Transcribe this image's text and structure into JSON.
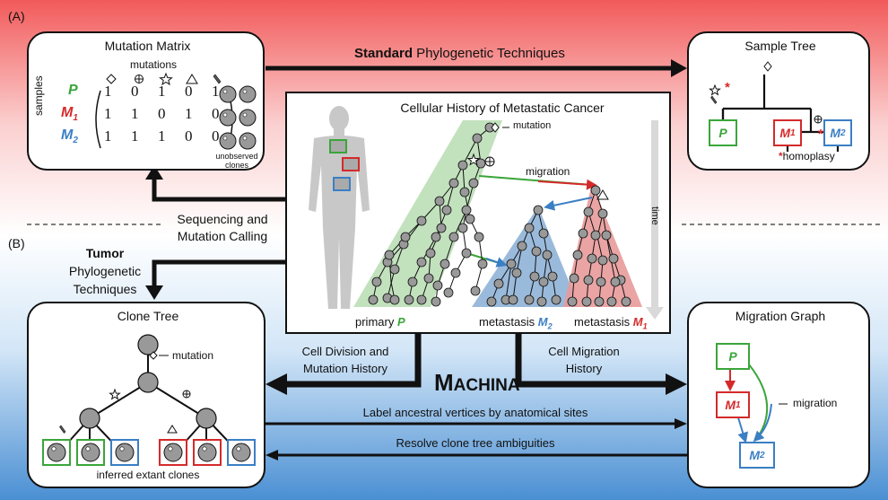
{
  "section_a": "(A)",
  "section_b": "(B)",
  "colors": {
    "primary": "#3aa53a",
    "m1": "#d42a2a",
    "m2": "#3b7fc4",
    "arrow": "#111111"
  },
  "mutation_matrix": {
    "title": "Mutation Matrix",
    "mutations_label": "mutations",
    "samples_label": "samples",
    "rows": [
      {
        "label_main": "P",
        "label_sub": "",
        "values": [
          "1",
          "0",
          "1",
          "0",
          "1"
        ]
      },
      {
        "label_main": "M",
        "label_sub": "1",
        "values": [
          "1",
          "1",
          "0",
          "1",
          "0"
        ]
      },
      {
        "label_main": "M",
        "label_sub": "2",
        "values": [
          "1",
          "1",
          "1",
          "0",
          "0"
        ]
      }
    ],
    "unobserved_clones": "unobserved clones",
    "mutation_icons": [
      "diamond-icon",
      "circle-plus-icon",
      "star-icon",
      "triangle-icon",
      "pencil-icon"
    ]
  },
  "standard_arrow": {
    "bold": "Standard",
    "rest": " Phylogenetic Techniques"
  },
  "sample_tree": {
    "title": "Sample Tree",
    "leaves": [
      {
        "main": "P",
        "sub": ""
      },
      {
        "main": "M",
        "sub": "1"
      },
      {
        "main": "M",
        "sub": "2"
      }
    ],
    "homoplasy_mark": "*",
    "homoplasy_label": "homoplasy"
  },
  "cellular_history": {
    "title": "Cellular History of Metastatic Cancer",
    "mutation_label": "mutation",
    "migration_label": "migration",
    "time_label": "time",
    "primary_label": "primary ",
    "primary_site": "P",
    "met2_label": "metastasis ",
    "met2_site": {
      "main": "M",
      "sub": "2"
    },
    "met1_label": "metastasis ",
    "met1_site": {
      "main": "M",
      "sub": "1"
    }
  },
  "sequencing": {
    "line1": "Sequencing and",
    "line2": "Mutation Calling"
  },
  "tumor": {
    "bold": "Tumor",
    "line2": "Phylogenetic",
    "line3": "Techniques"
  },
  "clone_tree": {
    "title": "Clone Tree",
    "mutation_label": "mutation",
    "extant_label": "inferred extant clones"
  },
  "cell_division": {
    "line1": "Cell Division and",
    "line2": "Mutation History"
  },
  "cell_migration": {
    "line1": "Cell Migration",
    "line2": "History"
  },
  "machina": {
    "big1": "M",
    "small": "ACHINA"
  },
  "label_arrow": "Label ancestral vertices by anatomical sites",
  "resolve_arrow": "Resolve clone tree ambiguities",
  "migration_graph": {
    "title": "Migration Graph",
    "nodes": [
      {
        "main": "P",
        "sub": ""
      },
      {
        "main": "M",
        "sub": "1"
      },
      {
        "main": "M",
        "sub": "2"
      }
    ],
    "migration_label": "migration"
  }
}
